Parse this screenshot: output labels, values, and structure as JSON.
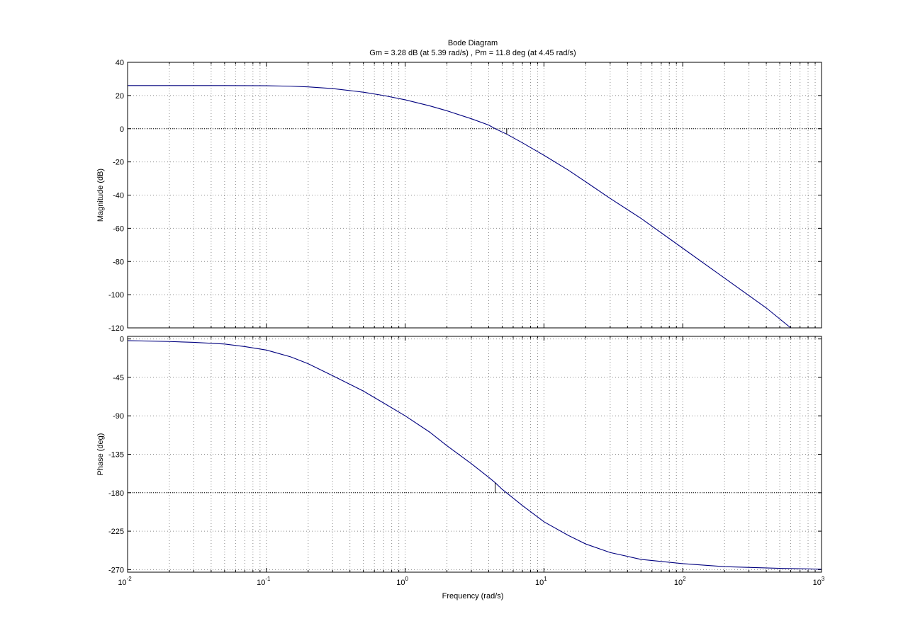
{
  "chart_data": {
    "type": "line",
    "title": "Bode Diagram",
    "subtitle": "Gm = 3.28 dB (at 5.39 rad/s) ,  Pm = 11.8 deg (at 4.45 rad/s)",
    "xlabel": "Frequency  (rad/s)",
    "xscale": "log",
    "xlim": [
      0.01,
      1000
    ],
    "x_tick_labels": [
      {
        "value": 0.01,
        "base": "10",
        "exp": "-2"
      },
      {
        "value": 0.1,
        "base": "10",
        "exp": "-1"
      },
      {
        "value": 1,
        "base": "10",
        "exp": "0"
      },
      {
        "value": 10,
        "base": "10",
        "exp": "1"
      },
      {
        "value": 100,
        "base": "10",
        "exp": "2"
      },
      {
        "value": 1000,
        "base": "10",
        "exp": "3"
      }
    ],
    "grid": true,
    "line_color": "#00007f",
    "panels": [
      {
        "id": "magnitude",
        "ylabel": "Magnitude (dB)",
        "ylim": [
          -120,
          40
        ],
        "yticks": [
          40,
          20,
          0,
          -20,
          -40,
          -60,
          -80,
          -100,
          -120
        ],
        "ytick_labels": [
          "40",
          "20",
          "0",
          "-20",
          "-40",
          "-60",
          "-80",
          "-100",
          "-120"
        ],
        "ref_line": 0,
        "marker": {
          "x": 5.39,
          "y0": -3.28,
          "y1": 0
        },
        "points": [
          [
            0.01,
            26.0
          ],
          [
            0.03,
            26.0
          ],
          [
            0.05,
            26.0
          ],
          [
            0.1,
            25.9
          ],
          [
            0.15,
            25.6
          ],
          [
            0.2,
            25.2
          ],
          [
            0.3,
            24.2
          ],
          [
            0.5,
            22.0
          ],
          [
            0.7,
            20.0
          ],
          [
            1,
            17.4
          ],
          [
            1.5,
            13.8
          ],
          [
            2,
            10.8
          ],
          [
            3,
            6.0
          ],
          [
            4,
            2.2
          ],
          [
            4.45,
            0.0
          ],
          [
            5.39,
            -3.28
          ],
          [
            7,
            -8.5
          ],
          [
            10,
            -16.0
          ],
          [
            15,
            -25.0
          ],
          [
            20,
            -32.0
          ],
          [
            30,
            -42.0
          ],
          [
            50,
            -54.0
          ],
          [
            100,
            -72.0
          ],
          [
            200,
            -90.0
          ],
          [
            400,
            -108.0
          ],
          [
            600,
            -120.0
          ]
        ]
      },
      {
        "id": "phase",
        "ylabel": "Phase (deg)",
        "ylim": [
          -273,
          3
        ],
        "yticks": [
          0,
          -45,
          -90,
          -135,
          -180,
          -225,
          -270
        ],
        "ytick_labels": [
          "0",
          "-45",
          "-90",
          "-135",
          "-180",
          "-225",
          "-270"
        ],
        "ref_line": -180,
        "marker": {
          "x": 4.45,
          "y0": -168.2,
          "y1": -180
        },
        "points": [
          [
            0.01,
            -2.0
          ],
          [
            0.02,
            -3.0
          ],
          [
            0.03,
            -4.0
          ],
          [
            0.05,
            -6.0
          ],
          [
            0.07,
            -9.0
          ],
          [
            0.1,
            -13.0
          ],
          [
            0.15,
            -21.0
          ],
          [
            0.2,
            -29.0
          ],
          [
            0.3,
            -43.0
          ],
          [
            0.5,
            -61.0
          ],
          [
            0.7,
            -75.0
          ],
          [
            1,
            -90.0
          ],
          [
            1.5,
            -109.0
          ],
          [
            2,
            -125.0
          ],
          [
            3,
            -146.0
          ],
          [
            4,
            -162.0
          ],
          [
            4.45,
            -168.2
          ],
          [
            5,
            -176.0
          ],
          [
            7,
            -195.0
          ],
          [
            10,
            -214.0
          ],
          [
            15,
            -230.0
          ],
          [
            20,
            -240.0
          ],
          [
            30,
            -250.0
          ],
          [
            50,
            -258.0
          ],
          [
            100,
            -263.0
          ],
          [
            200,
            -266.5
          ],
          [
            500,
            -268.5
          ],
          [
            1000,
            -269.5
          ]
        ]
      }
    ]
  }
}
